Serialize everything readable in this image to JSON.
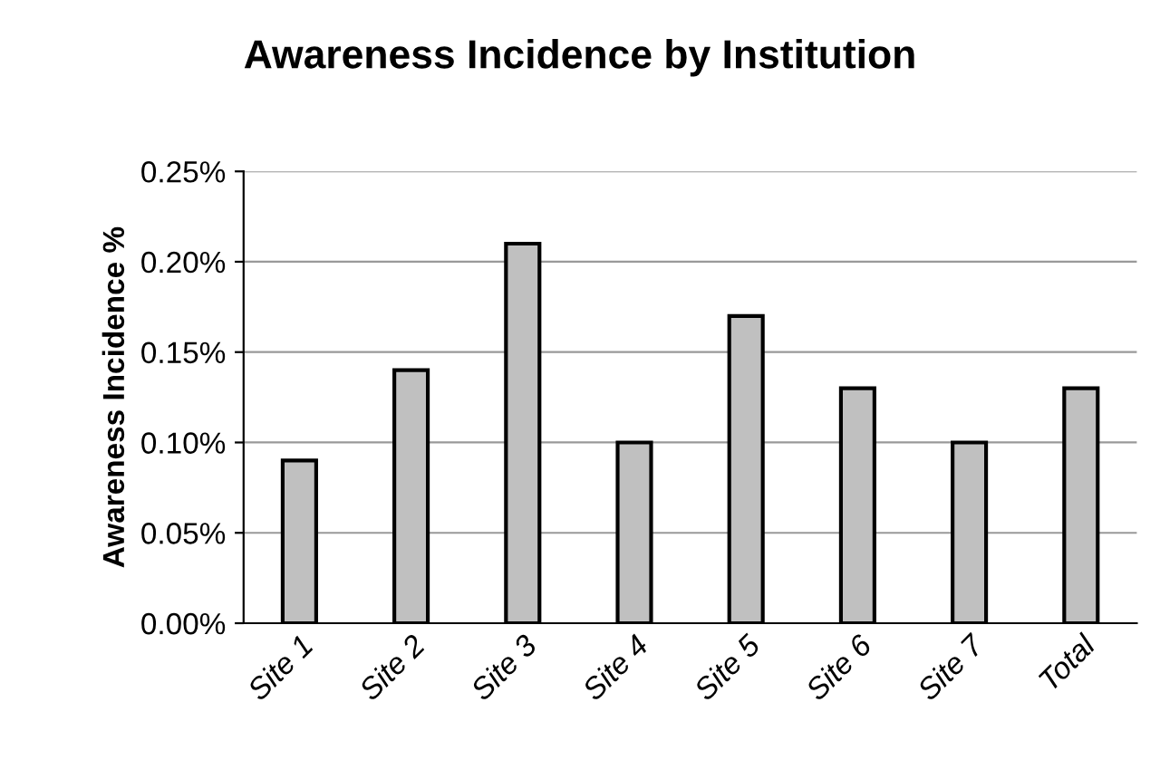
{
  "chart_data": {
    "type": "bar",
    "title": "Awareness Incidence by Institution",
    "ylabel": "Awareness Incidence %",
    "categories": [
      "Site 1",
      "Site 2",
      "Site 3",
      "Site 4",
      "Site 5",
      "Site 6",
      "Site 7",
      "Total"
    ],
    "values": [
      0.09,
      0.14,
      0.21,
      0.1,
      0.17,
      0.13,
      0.1,
      0.13
    ],
    "color": "#c0c0c0",
    "ylim": [
      0,
      0.25
    ],
    "yticks": [
      {
        "value": 0,
        "label": "0.00%"
      },
      {
        "value": 0.05,
        "label": "0.05%"
      },
      {
        "value": 0.1,
        "label": "0.10%"
      },
      {
        "value": 0.15,
        "label": "0.15%"
      },
      {
        "value": 0.2,
        "label": "0.20%"
      },
      {
        "value": 0.25,
        "label": "0.25%"
      }
    ],
    "grid": "y",
    "legend": false
  }
}
